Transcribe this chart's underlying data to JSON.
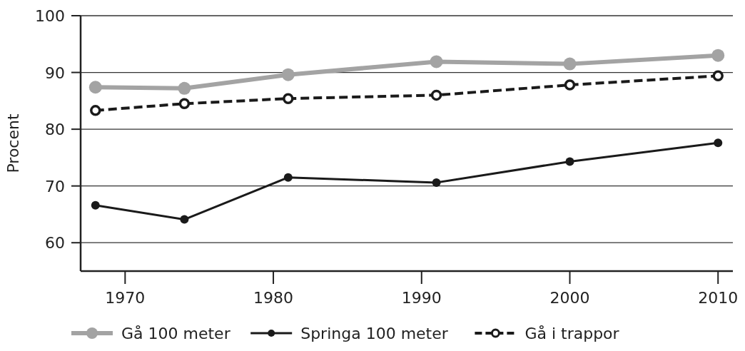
{
  "chart_data": {
    "type": "line",
    "ylabel": "Procent",
    "x": [
      1968,
      1974,
      1981,
      1991,
      2000,
      2010
    ],
    "xlim": [
      1967,
      2011
    ],
    "xticks": [
      1970,
      1980,
      1990,
      2000,
      2010
    ],
    "ylim": [
      55,
      100
    ],
    "yticks": [
      60,
      70,
      80,
      90,
      100
    ],
    "grid": "y",
    "legend": "bottom",
    "marker": "circle",
    "series": [
      {
        "name": "Gå 100 meter",
        "color": "#a3a3a3",
        "line_style": "solid",
        "values": [
          87.4,
          87.2,
          89.6,
          91.9,
          91.5,
          93.0
        ]
      },
      {
        "name": "Springa 100 meter",
        "color": "#1a1a1a",
        "line_style": "solid",
        "values": [
          66.6,
          64.1,
          71.5,
          70.6,
          74.3,
          77.6
        ]
      },
      {
        "name": "Gå i trappor",
        "color": "#1a1a1a",
        "line_style": "dashed",
        "values": [
          83.3,
          84.5,
          85.4,
          86.0,
          87.8,
          89.4
        ]
      }
    ]
  }
}
